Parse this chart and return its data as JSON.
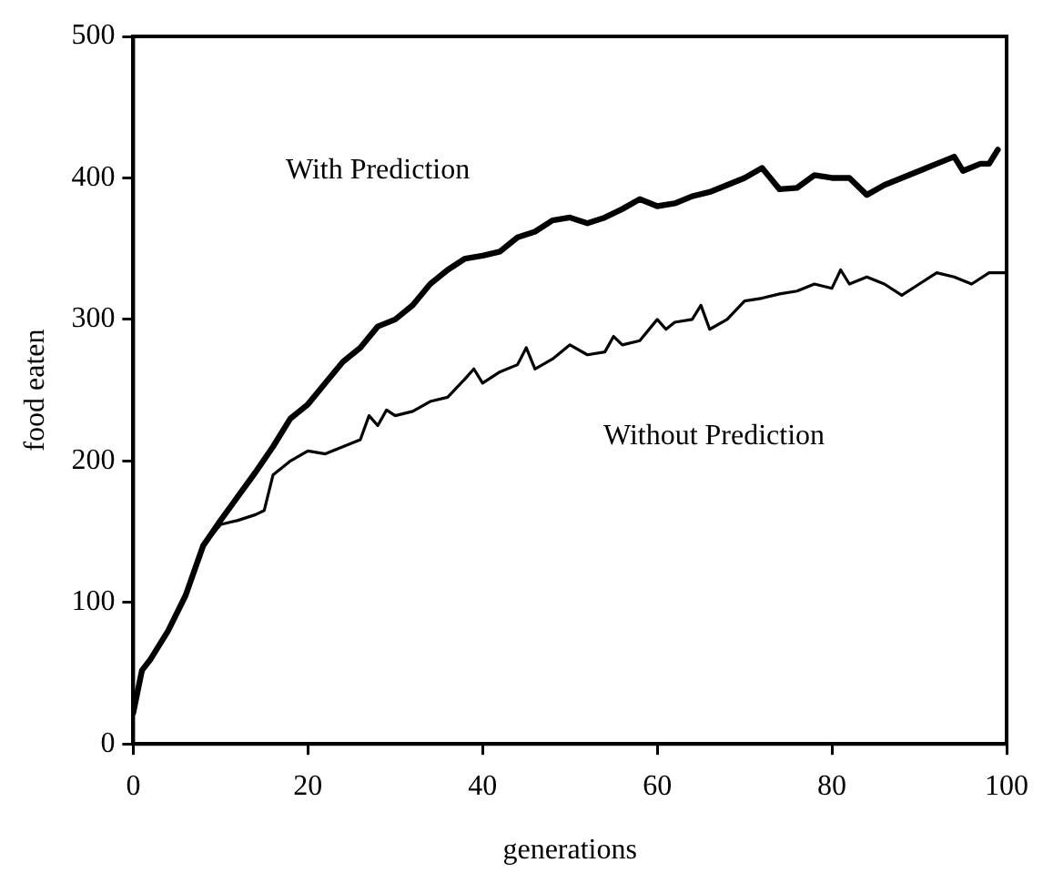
{
  "chart_data": {
    "type": "line",
    "xlabel": "generations",
    "ylabel": "food eaten",
    "xlim": [
      0,
      100
    ],
    "xticks": [
      0,
      20,
      40,
      60,
      80,
      100
    ],
    "ylim": [
      0,
      500
    ],
    "yticks": [
      0,
      100,
      200,
      300,
      400,
      500
    ],
    "grid": false,
    "legend": false,
    "marker": "none",
    "line_style": "solid",
    "series": [
      {
        "name": "With Prediction",
        "color": "#000000",
        "x": [
          0,
          1,
          2,
          4,
          6,
          8,
          10,
          12,
          14,
          16,
          18,
          20,
          22,
          24,
          26,
          28,
          30,
          32,
          34,
          36,
          38,
          40,
          42,
          44,
          46,
          48,
          50,
          52,
          54,
          56,
          58,
          60,
          62,
          64,
          66,
          68,
          70,
          72,
          74,
          76,
          78,
          80,
          82,
          84,
          86,
          88,
          90,
          92,
          94,
          95,
          97,
          98,
          99
        ],
        "values": [
          22,
          52,
          60,
          80,
          105,
          140,
          158,
          175,
          192,
          210,
          230,
          240,
          255,
          270,
          280,
          295,
          300,
          310,
          325,
          335,
          343,
          345,
          348,
          358,
          362,
          370,
          372,
          368,
          372,
          378,
          385,
          380,
          382,
          387,
          390,
          395,
          400,
          407,
          392,
          393,
          402,
          400,
          400,
          388,
          395,
          400,
          405,
          410,
          415,
          405,
          410,
          410,
          420
        ]
      },
      {
        "name": "Without Prediction",
        "color": "#000000",
        "x": [
          0,
          1,
          2,
          4,
          6,
          8,
          10,
          12,
          14,
          15,
          16,
          18,
          20,
          22,
          24,
          26,
          27,
          28,
          29,
          30,
          32,
          34,
          36,
          38,
          39,
          40,
          42,
          44,
          45,
          46,
          48,
          50,
          52,
          54,
          55,
          56,
          58,
          60,
          61,
          62,
          64,
          65,
          66,
          68,
          70,
          72,
          74,
          76,
          78,
          80,
          81,
          82,
          84,
          86,
          88,
          90,
          92,
          94,
          96,
          98,
          100
        ],
        "values": [
          22,
          52,
          60,
          80,
          105,
          140,
          155,
          158,
          162,
          165,
          190,
          200,
          207,
          205,
          210,
          215,
          232,
          225,
          236,
          232,
          235,
          242,
          245,
          258,
          265,
          255,
          263,
          268,
          280,
          265,
          272,
          282,
          275,
          277,
          288,
          282,
          285,
          300,
          293,
          298,
          300,
          310,
          293,
          300,
          313,
          315,
          318,
          320,
          325,
          322,
          335,
          325,
          330,
          325,
          317,
          325,
          333,
          330,
          325,
          333,
          333
        ]
      }
    ]
  }
}
